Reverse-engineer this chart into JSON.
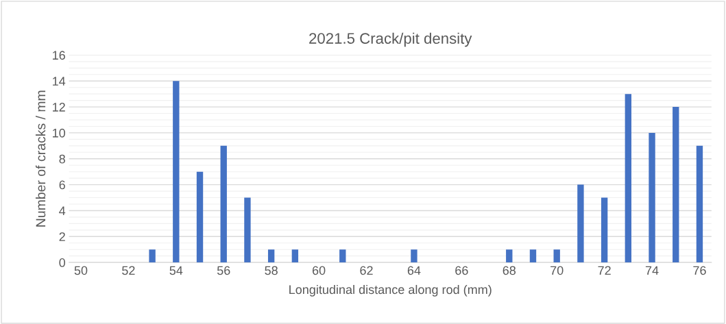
{
  "chart_data": {
    "type": "bar",
    "title": "2021.5 Crack/pit density",
    "xlabel": "Longitudinal distance along rod (mm)",
    "ylabel": "Number of cracks / mm",
    "categories": [
      "50",
      null,
      "52",
      null,
      "54",
      null,
      "56",
      null,
      "58",
      null,
      "60",
      null,
      "62",
      null,
      "64",
      null,
      "66",
      null,
      "68",
      null,
      "70",
      null,
      "72",
      null,
      "74",
      null,
      "76"
    ],
    "values": [
      0,
      0,
      0,
      1,
      14,
      7,
      9,
      5,
      1,
      1,
      0,
      1,
      0,
      0,
      1,
      0,
      0,
      0,
      1,
      1,
      1,
      6,
      5,
      13,
      10,
      12,
      9
    ],
    "color": "#4472c4",
    "ylim": [
      0,
      16
    ],
    "yticks": [
      0,
      2,
      4,
      6,
      8,
      10,
      12,
      14,
      16
    ],
    "grid": "y",
    "legend": false
  }
}
